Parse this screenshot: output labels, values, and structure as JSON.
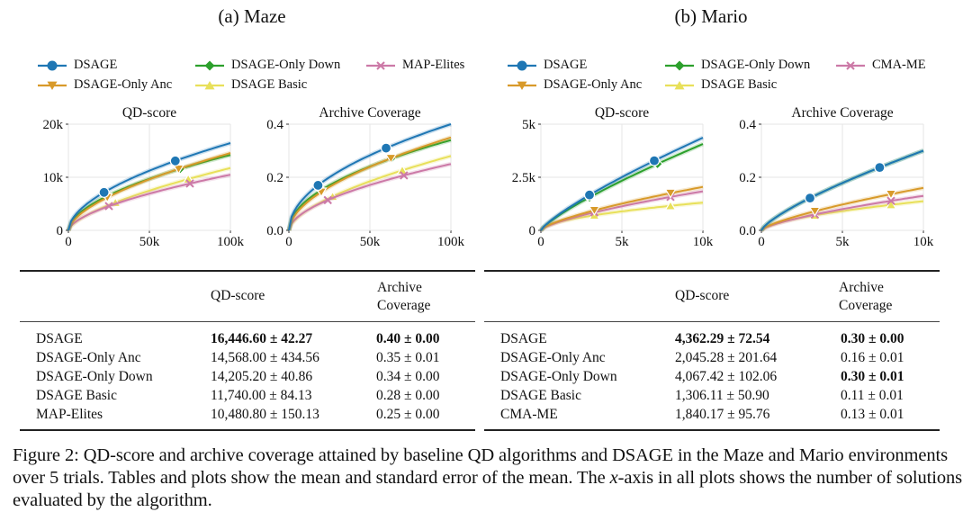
{
  "panels": [
    {
      "title": "(a) Maze",
      "legend": [
        {
          "label": "DSAGE",
          "color": "#1f77b4",
          "marker": "circle"
        },
        {
          "label": "DSAGE-Only Down",
          "color": "#2ca02c",
          "marker": "diamond"
        },
        {
          "label": "MAP-Elites",
          "color": "#cc79a7",
          "marker": "x"
        },
        {
          "label": "DSAGE-Only Anc",
          "color": "#d89a2a",
          "marker": "triangle-down"
        },
        {
          "label": "DSAGE Basic",
          "color": "#e8e05a",
          "marker": "triangle-up"
        }
      ],
      "table": {
        "headers": {
          "method": "",
          "qd": "QD-score",
          "cov_line1": "Archive",
          "cov_line2": "Coverage"
        },
        "rows": [
          {
            "method": "DSAGE",
            "qd": "16,446.60 ± 42.27",
            "cov": "0.40 ± 0.00",
            "qd_bold": true,
            "cov_bold": true
          },
          {
            "method": "DSAGE-Only Anc",
            "qd": "14,568.00 ± 434.56",
            "cov": "0.35 ± 0.01",
            "qd_bold": false,
            "cov_bold": false
          },
          {
            "method": "DSAGE-Only Down",
            "qd": "14,205.20 ± 40.86",
            "cov": "0.34 ± 0.00",
            "qd_bold": false,
            "cov_bold": false
          },
          {
            "method": "DSAGE Basic",
            "qd": "11,740.00 ± 84.13",
            "cov": "0.28 ± 0.00",
            "qd_bold": false,
            "cov_bold": false
          },
          {
            "method": "MAP-Elites",
            "qd": "10,480.80 ± 150.13",
            "cov": "0.25 ± 0.00",
            "qd_bold": false,
            "cov_bold": false
          }
        ]
      }
    },
    {
      "title": "(b) Mario",
      "legend": [
        {
          "label": "DSAGE",
          "color": "#1f77b4",
          "marker": "circle"
        },
        {
          "label": "DSAGE-Only Down",
          "color": "#2ca02c",
          "marker": "diamond"
        },
        {
          "label": "CMA-ME",
          "color": "#cc79a7",
          "marker": "x"
        },
        {
          "label": "DSAGE-Only Anc",
          "color": "#d89a2a",
          "marker": "triangle-down"
        },
        {
          "label": "DSAGE Basic",
          "color": "#e8e05a",
          "marker": "triangle-up"
        }
      ],
      "table": {
        "headers": {
          "method": "",
          "qd": "QD-score",
          "cov_line1": "Archive",
          "cov_line2": "Coverage"
        },
        "rows": [
          {
            "method": "DSAGE",
            "qd": "4,362.29 ± 72.54",
            "cov": "0.30 ± 0.00",
            "qd_bold": true,
            "cov_bold": true
          },
          {
            "method": "DSAGE-Only Anc",
            "qd": "2,045.28 ± 201.64",
            "cov": "0.16 ± 0.01",
            "qd_bold": false,
            "cov_bold": false
          },
          {
            "method": "DSAGE-Only Down",
            "qd": "4,067.42 ± 102.06",
            "cov": "0.30 ± 0.01",
            "qd_bold": false,
            "cov_bold": true
          },
          {
            "method": "DSAGE Basic",
            "qd": "1,306.11 ± 50.90",
            "cov": "0.11 ± 0.01",
            "qd_bold": false,
            "cov_bold": false
          },
          {
            "method": "CMA-ME",
            "qd": "1,840.17 ± 95.76",
            "cov": "0.13 ± 0.01",
            "qd_bold": false,
            "cov_bold": false
          }
        ]
      }
    }
  ],
  "caption": {
    "prefix": "Figure 2: QD-score and archive coverage attained by baseline QD algorithms and DSAGE in the Maze and Mario environments over 5 trials. Tables and plots show the mean and standard error of the mean. The ",
    "xvar": "x",
    "suffix": "-axis in all plots shows the number of solutions evaluated by the algorithm."
  },
  "chart_data": [
    {
      "type": "line",
      "panel": "Maze",
      "title": "QD-score",
      "xlabel": "",
      "ylabel": "",
      "xlim": [
        0,
        100000
      ],
      "ylim": [
        0,
        20000
      ],
      "xticks": [
        0,
        50000,
        100000
      ],
      "xtick_labels": [
        "0",
        "50k",
        "100k"
      ],
      "yticks": [
        0,
        10000,
        20000
      ],
      "ytick_labels": [
        "0",
        "10k",
        "20k"
      ],
      "grid": true,
      "series": [
        {
          "name": "DSAGE",
          "final": 16446.6,
          "shape": 0.55,
          "markers_x": [
            22000,
            66000
          ]
        },
        {
          "name": "DSAGE-Only Down",
          "final": 14205.2,
          "shape": 0.55,
          "markers_x": [
            24000,
            69000
          ]
        },
        {
          "name": "MAP-Elites",
          "final": 10480.8,
          "shape": 0.6,
          "markers_x": [
            25000,
            75000
          ]
        },
        {
          "name": "DSAGE-Only Anc",
          "final": 14568.0,
          "shape": 0.6,
          "markers_x": [
            24000,
            68000
          ]
        },
        {
          "name": "DSAGE Basic",
          "final": 11740.0,
          "shape": 0.65,
          "markers_x": [
            29000,
            74000
          ]
        }
      ]
    },
    {
      "type": "line",
      "panel": "Maze",
      "title": "Archive Coverage",
      "xlabel": "",
      "ylabel": "",
      "xlim": [
        0,
        100000
      ],
      "ylim": [
        0,
        0.4
      ],
      "xticks": [
        0,
        50000,
        100000
      ],
      "xtick_labels": [
        "0",
        "50k",
        "100k"
      ],
      "yticks": [
        0,
        0.2,
        0.4
      ],
      "ytick_labels": [
        "0.0",
        "0.2",
        "0.4"
      ],
      "grid": true,
      "series": [
        {
          "name": "DSAGE",
          "final": 0.4,
          "shape": 0.5,
          "markers_x": [
            18000,
            60000
          ]
        },
        {
          "name": "DSAGE-Only Down",
          "final": 0.34,
          "shape": 0.5,
          "markers_x": [
            20000,
            63000
          ]
        },
        {
          "name": "MAP-Elites",
          "final": 0.25,
          "shape": 0.55,
          "markers_x": [
            24000,
            71000
          ]
        },
        {
          "name": "DSAGE-Only Anc",
          "final": 0.35,
          "shape": 0.55,
          "markers_x": [
            20000,
            63000
          ]
        },
        {
          "name": "DSAGE Basic",
          "final": 0.28,
          "shape": 0.6,
          "markers_x": [
            27000,
            70000
          ]
        }
      ]
    },
    {
      "type": "line",
      "panel": "Mario",
      "title": "QD-score",
      "xlabel": "",
      "ylabel": "",
      "xlim": [
        0,
        10000
      ],
      "ylim": [
        0,
        5000
      ],
      "xticks": [
        0,
        5000,
        10000
      ],
      "xtick_labels": [
        "0",
        "5k",
        "10k"
      ],
      "yticks": [
        0,
        2500,
        5000
      ],
      "ytick_labels": [
        "0",
        "2.5k",
        "5k"
      ],
      "grid": true,
      "series": [
        {
          "name": "DSAGE",
          "final": 4362.29,
          "shape": 0.8,
          "markers_x": [
            3000,
            7000
          ]
        },
        {
          "name": "DSAGE-Only Down",
          "final": 4067.42,
          "shape": 0.8,
          "markers_x": [
            3000,
            7200
          ]
        },
        {
          "name": "CMA-ME",
          "final": 1840.17,
          "shape": 0.7,
          "markers_x": [
            3300,
            8000
          ]
        },
        {
          "name": "DSAGE-Only Anc",
          "final": 2045.28,
          "shape": 0.7,
          "markers_x": [
            3300,
            8000
          ]
        },
        {
          "name": "DSAGE Basic",
          "final": 1306.11,
          "shape": 0.55,
          "markers_x": [
            3300,
            8000
          ]
        }
      ]
    },
    {
      "type": "line",
      "panel": "Mario",
      "title": "Archive Coverage",
      "xlabel": "",
      "ylabel": "",
      "xlim": [
        0,
        10000
      ],
      "ylim": [
        0,
        0.4
      ],
      "xticks": [
        0,
        5000,
        10000
      ],
      "xtick_labels": [
        "0",
        "5k",
        "10k"
      ],
      "yticks": [
        0,
        0.2,
        0.4
      ],
      "ytick_labels": [
        "0.0",
        "0.2",
        "0.4"
      ],
      "grid": true,
      "series": [
        {
          "name": "DSAGE",
          "final": 0.3,
          "shape": 0.75,
          "markers_x": [
            3000,
            7300
          ]
        },
        {
          "name": "DSAGE-Only Down",
          "final": 0.3,
          "shape": 0.75,
          "markers_x": [
            3000,
            7300
          ]
        },
        {
          "name": "CMA-ME",
          "final": 0.13,
          "shape": 0.7,
          "markers_x": [
            3300,
            8000
          ]
        },
        {
          "name": "DSAGE-Only Anc",
          "final": 0.16,
          "shape": 0.72,
          "markers_x": [
            3300,
            8000
          ]
        },
        {
          "name": "DSAGE Basic",
          "final": 0.11,
          "shape": 0.6,
          "markers_x": [
            3300,
            8000
          ]
        }
      ]
    }
  ]
}
